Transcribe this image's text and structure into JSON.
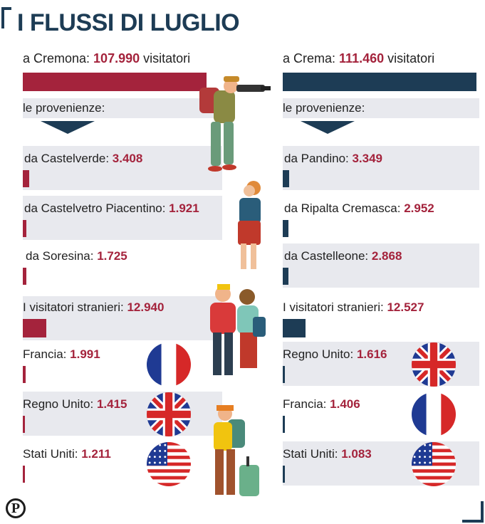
{
  "title": "I FLUSSI DI LUGLIO",
  "colors": {
    "cremona": "#a4233c",
    "crema": "#1d3c55",
    "strip": "#e8e9ee"
  },
  "logo_letter": "P",
  "chart_data": [
    {
      "type": "bar",
      "city": "Cremona",
      "headline_prefix": "a Cremona:",
      "total": 107990,
      "total_label": "107.990",
      "total_suffix": "visitatori",
      "provenienze_label": "le provenienze:",
      "origins": [
        {
          "label": "da Castelverde:",
          "value": 3408,
          "value_label": "3.408"
        },
        {
          "label": "da Castelvetro Piacentino:",
          "value": 1921,
          "value_label": "1.921"
        },
        {
          "label": "da Soresina:",
          "value": 1725,
          "value_label": "1.725"
        }
      ],
      "foreign": {
        "label": "I visitatori stranieri:",
        "value": 12940,
        "value_label": "12.940"
      },
      "countries": [
        {
          "label": "Francia:",
          "value": 1991,
          "value_label": "1.991",
          "flag": "france-flag"
        },
        {
          "label": "Regno Unito:",
          "value": 1415,
          "value_label": "1.415",
          "flag": "uk-flag"
        },
        {
          "label": "Stati Uniti:",
          "value": 1211,
          "value_label": "1.211",
          "flag": "usa-flag"
        }
      ]
    },
    {
      "type": "bar",
      "city": "Crema",
      "headline_prefix": "a Crema:",
      "total": 111460,
      "total_label": "111.460",
      "total_suffix": "visitatori",
      "provenienze_label": "le provenienze:",
      "origins": [
        {
          "label": "da Pandino:",
          "value": 3349,
          "value_label": "3.349"
        },
        {
          "label": "da Ripalta Cremasca:",
          "value": 2952,
          "value_label": "2.952"
        },
        {
          "label": "da Castelleone:",
          "value": 2868,
          "value_label": "2.868"
        }
      ],
      "foreign": {
        "label": "I visitatori stranieri:",
        "value": 12527,
        "value_label": "12.527"
      },
      "countries": [
        {
          "label": "Regno Unito:",
          "value": 1616,
          "value_label": "1.616",
          "flag": "uk-flag"
        },
        {
          "label": "Francia:",
          "value": 1406,
          "value_label": "1.406",
          "flag": "france-flag"
        },
        {
          "label": "Stati Uniti:",
          "value": 1083,
          "value_label": "1.083",
          "flag": "usa-flag"
        }
      ]
    }
  ]
}
